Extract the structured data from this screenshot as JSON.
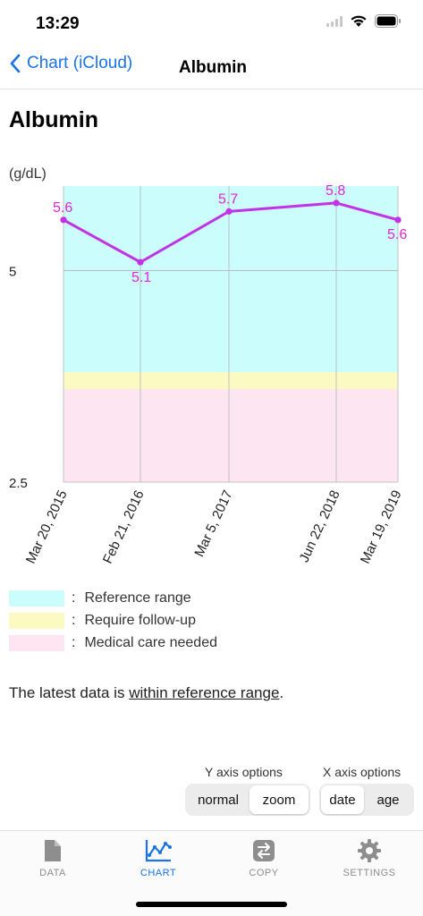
{
  "status": {
    "time": "13:29"
  },
  "nav": {
    "back_label": "Chart (iCloud)",
    "title": "Albumin"
  },
  "page": {
    "title": "Albumin",
    "y_unit": "(g/dL)"
  },
  "chart_data": {
    "type": "line",
    "x": [
      "Mar 20, 2015",
      "Feb 21, 2016",
      "Mar 5, 2017",
      "Jun 22, 2018",
      "Mar 19, 2019"
    ],
    "series": [
      {
        "values": [
          5.6,
          5.1,
          5.7,
          5.8,
          5.6
        ]
      }
    ],
    "data_labels": [
      "5.6",
      "5.1",
      "5.7",
      "5.8",
      "5.6"
    ],
    "y_ticks": [
      {
        "value": 5,
        "label": "5"
      },
      {
        "value": 2.5,
        "label": "2.5"
      }
    ],
    "ylim": [
      2.5,
      6.0
    ],
    "y_unit": "(g/dL)",
    "bands": [
      {
        "name": "Reference range",
        "from": 3.8,
        "to": 6.0,
        "color": "#ccfdfd"
      },
      {
        "name": "Require follow-up",
        "from": 3.6,
        "to": 3.8,
        "color": "#fbfac3"
      },
      {
        "name": "Medical care needed",
        "from": 2.5,
        "to": 3.6,
        "color": "#fde6f2"
      }
    ],
    "line_color": "#c232e6",
    "label_color": "#e025d9",
    "grid": true
  },
  "legend": [
    {
      "label": "Reference range",
      "color": "#ccfdfd"
    },
    {
      "label": "Require follow-up",
      "color": "#fbfac3"
    },
    {
      "label": "Medical care needed",
      "color": "#fde6f2"
    }
  ],
  "legend_colon": ":",
  "summary": {
    "prefix": "The latest data is ",
    "link": "within reference range",
    "suffix": "."
  },
  "y_axis_options": {
    "label": "Y axis options",
    "options": [
      "normal",
      "zoom"
    ],
    "selected": "zoom"
  },
  "x_axis_options": {
    "label": "X axis options",
    "options": [
      "date",
      "age"
    ],
    "selected": "date"
  },
  "tabs": [
    {
      "label": "DATA",
      "icon": "document-icon",
      "active": false
    },
    {
      "label": "CHART",
      "icon": "chart-icon",
      "active": true
    },
    {
      "label": "COPY",
      "icon": "copy-swap-icon",
      "active": false
    },
    {
      "label": "SETTINGS",
      "icon": "gear-icon",
      "active": false
    }
  ],
  "colors": {
    "accent": "#1a73e8",
    "inactive": "#8e8e8e"
  }
}
